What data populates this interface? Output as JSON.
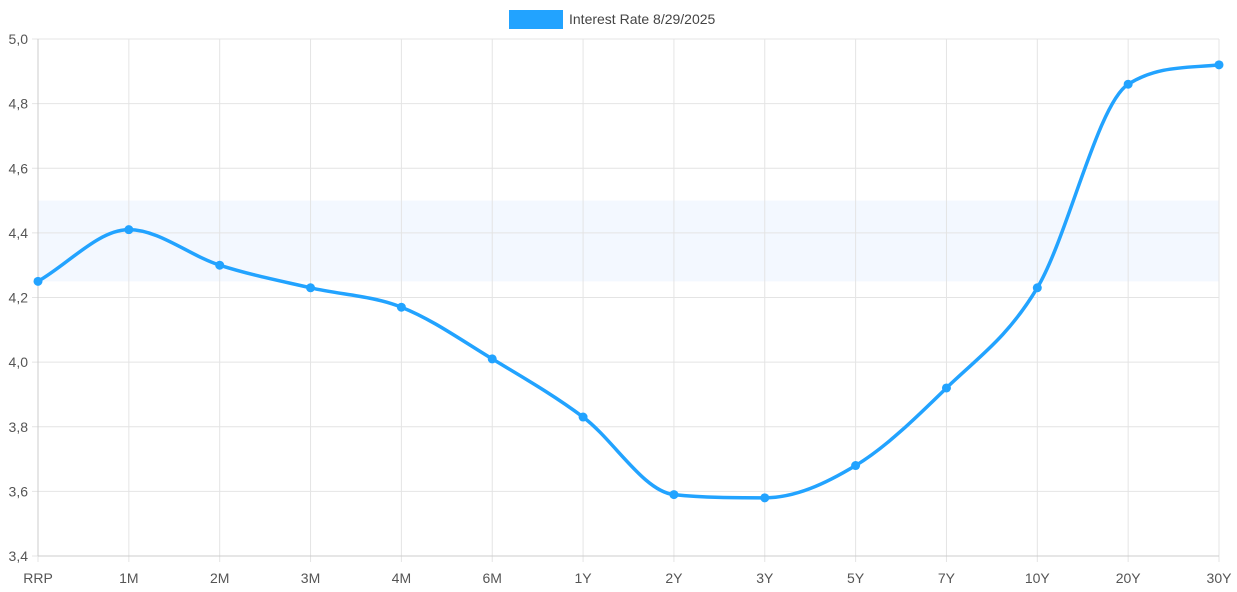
{
  "chart_data": {
    "type": "line",
    "categories": [
      "RRP",
      "1M",
      "2M",
      "3M",
      "4M",
      "6M",
      "1Y",
      "2Y",
      "3Y",
      "5Y",
      "7Y",
      "10Y",
      "20Y",
      "30Y"
    ],
    "series": [
      {
        "name": "Interest Rate 8/29/2025",
        "color": "#22a3ff",
        "values": [
          4.25,
          4.41,
          4.3,
          4.23,
          4.17,
          4.01,
          3.83,
          3.59,
          3.58,
          3.68,
          3.92,
          4.23,
          4.86,
          4.92
        ]
      }
    ],
    "ylim": [
      3.4,
      5.0
    ],
    "yticks": [
      "3,4",
      "3,6",
      "3,8",
      "4,0",
      "4,2",
      "4,4",
      "4,6",
      "4,8",
      "5,0"
    ],
    "ytick_values": [
      3.4,
      3.6,
      3.8,
      4.0,
      4.2,
      4.4,
      4.6,
      4.8,
      5.0
    ],
    "shaded_band": {
      "from": 4.25,
      "to": 4.5,
      "color": "#f3f8ff"
    },
    "grid": true,
    "legend": "top-center",
    "title": "",
    "xlabel": "",
    "ylabel": ""
  }
}
